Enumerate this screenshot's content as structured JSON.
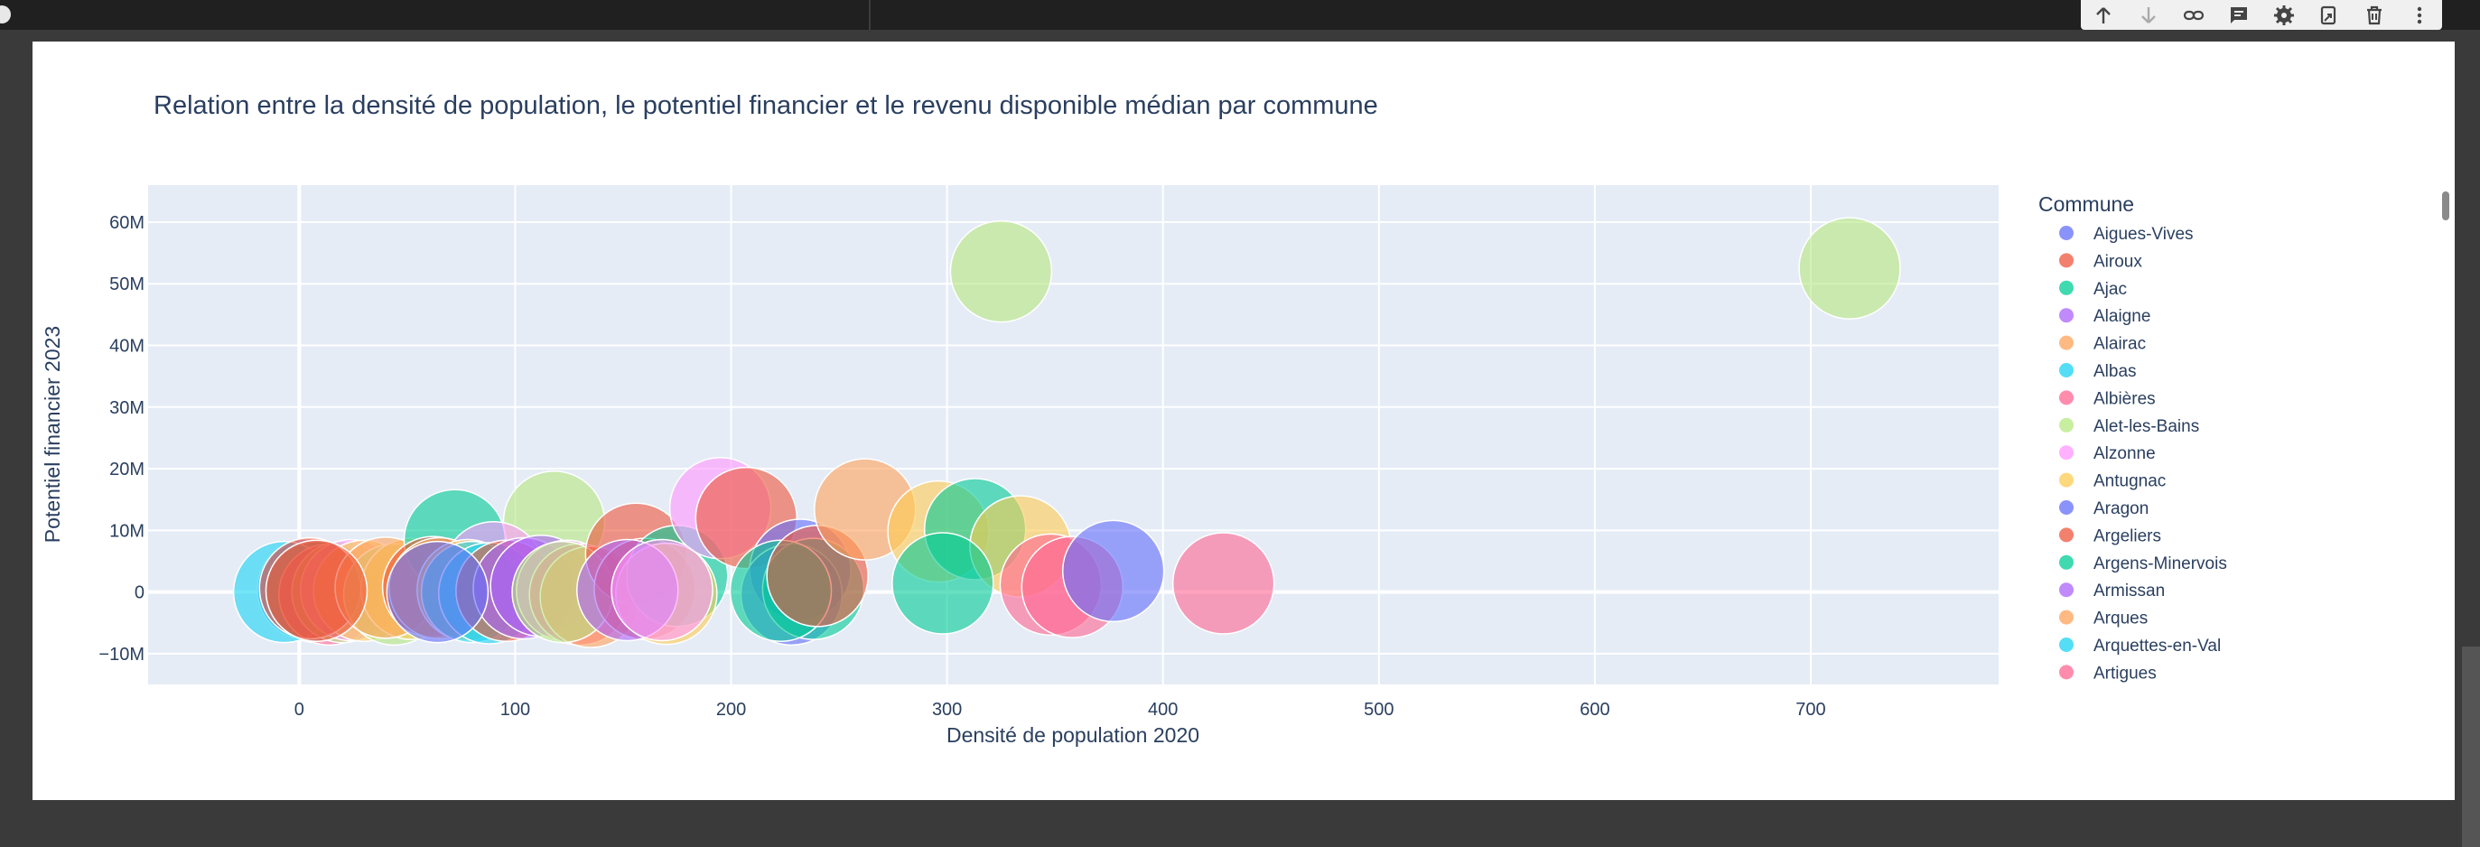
{
  "chart_data": {
    "type": "scatter",
    "title": "Relation entre la densité de population, le potentiel financier et le revenu disponible médian par commune",
    "xlabel": "Densité de population 2020",
    "ylabel": "Potentiel financier 2023",
    "xlim": [
      -70,
      787
    ],
    "ylim": [
      -15000000,
      66000000
    ],
    "x_ticks": [
      0,
      100,
      200,
      300,
      400,
      500,
      600,
      700
    ],
    "y_ticks": [
      -10000000,
      0,
      10000000,
      20000000,
      30000000,
      40000000,
      50000000,
      60000000
    ],
    "y_tick_labels": [
      "−10M",
      "0",
      "10M",
      "20M",
      "30M",
      "40M",
      "50M",
      "60M"
    ],
    "size_variable": "revenu disponible médian",
    "grid": true,
    "legend_position": "right",
    "legend_title": "Commune",
    "points": [
      {
        "commune": "Aigues-Vives",
        "x": 4,
        "y": 400000,
        "color": "#636EFA"
      },
      {
        "commune": "Argens-Minervois",
        "x": 8,
        "y": 0,
        "color": "#00CC96"
      },
      {
        "commune": "Albas",
        "x": -7,
        "y": 0,
        "color": "#19D3F3"
      },
      {
        "commune": "Albières",
        "x": 14,
        "y": -400000,
        "color": "#FF6692"
      },
      {
        "commune": "Alet-les-Bains",
        "x": 20,
        "y": 0,
        "color": "#B6E880"
      },
      {
        "commune": "Alzonne",
        "x": 24,
        "y": 300000,
        "color": "#FF97FF"
      },
      {
        "commune": "Antugnac",
        "x": 30,
        "y": 200000,
        "color": "#FECB52"
      },
      {
        "commune": "Airoux",
        "x": 5,
        "y": 600000,
        "color": "#EF553B"
      },
      {
        "commune": "Alet-les-Bains",
        "x": 44,
        "y": -400000,
        "color": "#B6E880"
      },
      {
        "commune": "Antugnac",
        "x": 52,
        "y": 500000,
        "color": "#FECB52"
      },
      {
        "commune": "Alairac",
        "x": 40,
        "y": 700000,
        "color": "#FFA15A"
      },
      {
        "commune": "Argens-Minervois",
        "x": 72,
        "y": 8400000,
        "color": "#00CC96"
      },
      {
        "commune": "Alet-les-Bains",
        "x": 118,
        "y": 11400000,
        "color": "#B6E880"
      },
      {
        "commune": "Alzonne",
        "x": 90,
        "y": 3200000,
        "color": "#FF97FF"
      },
      {
        "commune": "Argeliers",
        "x": 62,
        "y": 800000,
        "color": "#EF553B"
      },
      {
        "commune": "Arques",
        "x": 65,
        "y": 600000,
        "color": "#FFA15A"
      },
      {
        "commune": "Antugnac",
        "x": 78,
        "y": 300000,
        "color": "#FECB52"
      },
      {
        "commune": "Albas",
        "x": 80,
        "y": 0,
        "color": "#19D3F3"
      },
      {
        "commune": "Albas",
        "x": 88,
        "y": -200000,
        "color": "#19D3F3"
      },
      {
        "commune": "Argeliers",
        "x": 96,
        "y": 200000,
        "color": "#EF553B"
      },
      {
        "commune": "Armissan",
        "x": 104,
        "y": 600000,
        "color": "#AB63FA"
      },
      {
        "commune": "Armissan",
        "x": 112,
        "y": 1000000,
        "color": "#AB63FA"
      },
      {
        "commune": "Alzonne",
        "x": 124,
        "y": 200000,
        "color": "#FF97FF"
      },
      {
        "commune": "Albières",
        "x": 130,
        "y": -400000,
        "color": "#FF6692"
      },
      {
        "commune": "Arques",
        "x": 135,
        "y": -800000,
        "color": "#FFA15A"
      },
      {
        "commune": "Alet-les-Bains",
        "x": 122,
        "y": 0,
        "color": "#B6E880"
      },
      {
        "commune": "Argeliers",
        "x": 156,
        "y": 6200000,
        "color": "#EF553B"
      },
      {
        "commune": "Argeliers",
        "x": 160,
        "y": 500000,
        "color": "#EF553B"
      },
      {
        "commune": "Argens-Minervois",
        "x": 175,
        "y": 2600000,
        "color": "#00CC96"
      },
      {
        "commune": "Antugnac",
        "x": 170,
        "y": -300000,
        "color": "#FECB52"
      },
      {
        "commune": "Armissan",
        "x": 152,
        "y": 300000,
        "color": "#AB63FA"
      },
      {
        "commune": "Alzonne",
        "x": 168,
        "y": 300000,
        "color": "#FF97FF"
      },
      {
        "commune": "Alzonne",
        "x": 195,
        "y": 13600000,
        "color": "#FF97FF"
      },
      {
        "commune": "Airoux",
        "x": 207,
        "y": 12000000,
        "color": "#EF553B"
      },
      {
        "commune": "Aragon",
        "x": 232,
        "y": 3600000,
        "color": "#636EFA"
      },
      {
        "commune": "Aragon",
        "x": 228,
        "y": -400000,
        "color": "#636EFA"
      },
      {
        "commune": "Argens-Minervois",
        "x": 238,
        "y": 500000,
        "color": "#00CC96"
      },
      {
        "commune": "Argens-Minervois",
        "x": 223,
        "y": 200000,
        "color": "#00CC96"
      },
      {
        "commune": "Argeliers",
        "x": 240,
        "y": 2600000,
        "color": "#EF553B"
      },
      {
        "commune": "Alairac",
        "x": 262,
        "y": 13400000,
        "color": "#FFA15A"
      },
      {
        "commune": "Antugnac",
        "x": 296,
        "y": 9800000,
        "color": "#FECB52"
      },
      {
        "commune": "Argens-Minervois",
        "x": 313,
        "y": 10200000,
        "color": "#00CC96"
      },
      {
        "commune": "Antugnac",
        "x": 334,
        "y": 7400000,
        "color": "#FECB52"
      },
      {
        "commune": "Argens-Minervois",
        "x": 298,
        "y": 1400000,
        "color": "#00CC96"
      },
      {
        "commune": "Artigues",
        "x": 348,
        "y": 1200000,
        "color": "#FF6692"
      },
      {
        "commune": "Albières",
        "x": 358,
        "y": 800000,
        "color": "#FF6692"
      },
      {
        "commune": "Aragon",
        "x": 377,
        "y": 3400000,
        "color": "#636EFA"
      },
      {
        "commune": "Artigues",
        "x": 428,
        "y": 1400000,
        "color": "#FF6692"
      },
      {
        "commune": "Alet-les-Bains",
        "x": 325,
        "y": 52000000,
        "color": "#B6E880"
      },
      {
        "commune": "Alet-les-Bains",
        "x": 718,
        "y": 52500000,
        "color": "#B6E880"
      },
      {
        "commune": "Aigues-Vives",
        "x": 64,
        "y": 0,
        "color": "#636EFA"
      },
      {
        "commune": "Argeliers",
        "x": 8,
        "y": 200000,
        "color": "#EF553B"
      }
    ],
    "legend": [
      {
        "label": "Aigues-Vives",
        "color": "#636EFA"
      },
      {
        "label": "Airoux",
        "color": "#EF553B"
      },
      {
        "label": "Ajac",
        "color": "#00CC96"
      },
      {
        "label": "Alaigne",
        "color": "#AB63FA"
      },
      {
        "label": "Alairac",
        "color": "#FFA15A"
      },
      {
        "label": "Albas",
        "color": "#19D3F3"
      },
      {
        "label": "Albières",
        "color": "#FF6692"
      },
      {
        "label": "Alet-les-Bains",
        "color": "#B6E880"
      },
      {
        "label": "Alzonne",
        "color": "#FF97FF"
      },
      {
        "label": "Antugnac",
        "color": "#FECB52"
      },
      {
        "label": "Aragon",
        "color": "#636EFA"
      },
      {
        "label": "Argeliers",
        "color": "#EF553B"
      },
      {
        "label": "Argens-Minervois",
        "color": "#00CC96"
      },
      {
        "label": "Armissan",
        "color": "#AB63FA"
      },
      {
        "label": "Arques",
        "color": "#FFA15A"
      },
      {
        "label": "Arquettes-en-Val",
        "color": "#19D3F3"
      },
      {
        "label": "Artigues",
        "color": "#FF6692"
      }
    ]
  },
  "toolbar": {
    "icons": [
      "arrow-up-icon",
      "arrow-down-icon",
      "link-icon",
      "comment-icon",
      "gear-icon",
      "mirror-cell-icon",
      "trash-icon",
      "more-vert-icon"
    ]
  }
}
